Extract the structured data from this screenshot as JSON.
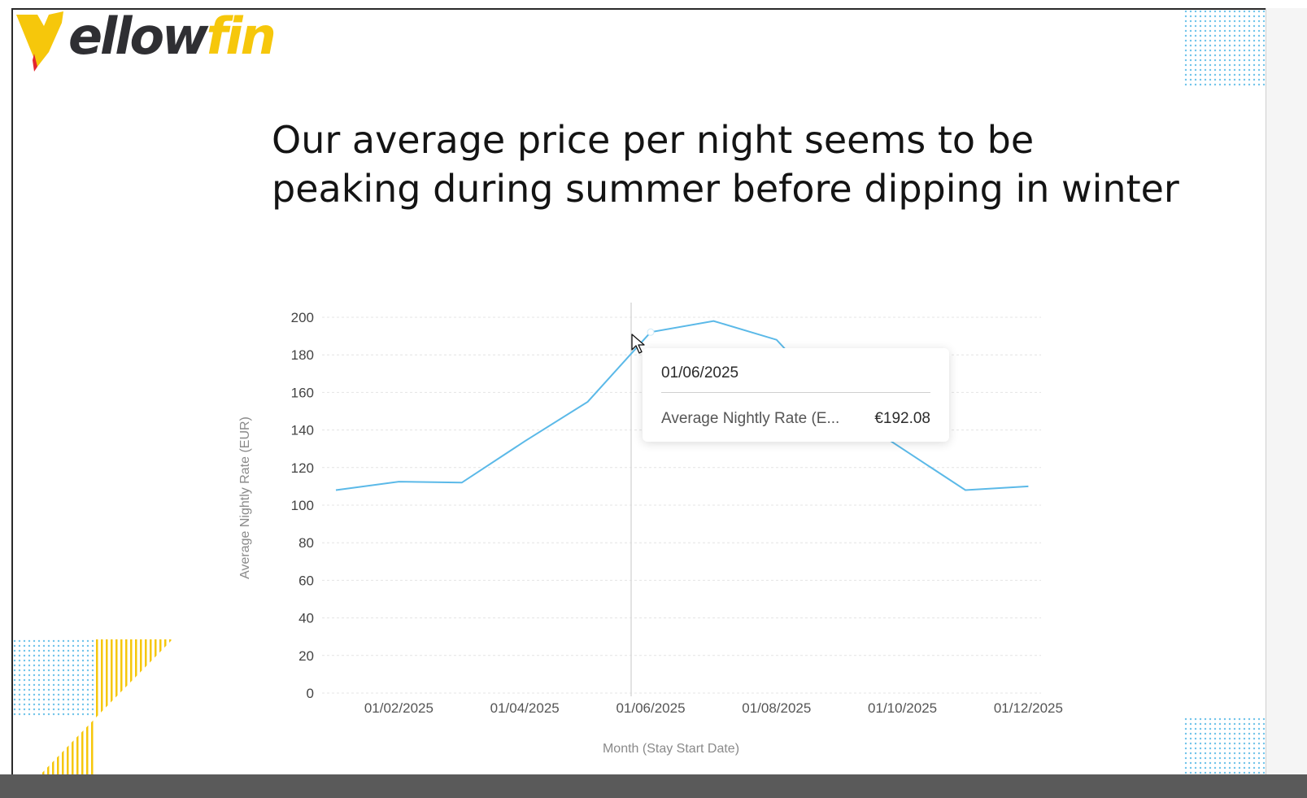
{
  "slide": {
    "logo_dark": "ellow",
    "logo_yellow": "fin",
    "title_line1": "Our average price per night seems to be",
    "title_line2": "peaking during summer before dipping in winter"
  },
  "colors": {
    "line": "#5bb9e8",
    "logo_yellow": "#f6c70b",
    "logo_red": "#e4262f",
    "logo_dark": "#2f2f33",
    "dots_blue": "#6fc3ea"
  },
  "tooltip": {
    "date": "01/06/2025",
    "label": "Average Nightly Rate (E...",
    "value": "€192.08"
  },
  "chart_data": {
    "type": "line",
    "xlabel": "Month (Stay Start Date)",
    "ylabel": "Average Nightly Rate (EUR)",
    "ylim": [
      0,
      200
    ],
    "yticks": [
      0,
      20,
      40,
      60,
      80,
      100,
      120,
      140,
      160,
      180,
      200
    ],
    "xtick_labels": [
      "01/02/2025",
      "01/04/2025",
      "01/06/2025",
      "01/08/2025",
      "01/10/2025",
      "01/12/2025"
    ],
    "x": [
      "01/01/2025",
      "01/02/2025",
      "01/03/2025",
      "01/04/2025",
      "01/05/2025",
      "01/06/2025",
      "01/07/2025",
      "01/08/2025",
      "01/09/2025",
      "01/10/2025",
      "01/11/2025",
      "01/12/2025"
    ],
    "series": [
      {
        "values": [
          108,
          112.5,
          112,
          134,
          155,
          192.08,
          198,
          188,
          152,
          130,
          108,
          110
        ]
      }
    ],
    "highlighted_x": "01/06/2025",
    "grid": true
  }
}
